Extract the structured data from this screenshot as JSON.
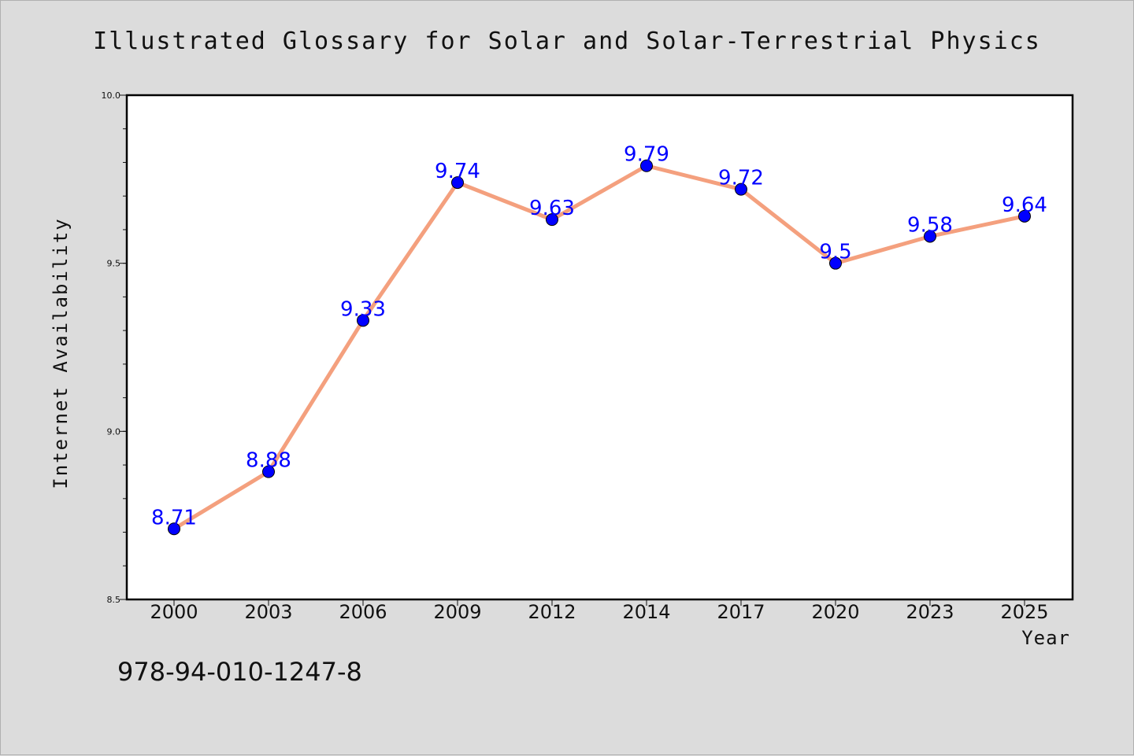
{
  "chart_data": {
    "type": "line",
    "title": "Illustrated Glossary for Solar and Solar-Terrestrial Physics",
    "xlabel": "Year",
    "ylabel": "Internet Availability",
    "categories": [
      "2000",
      "2003",
      "2006",
      "2009",
      "2012",
      "2014",
      "2017",
      "2020",
      "2023",
      "2025"
    ],
    "series": [
      {
        "values": [
          8.71,
          8.88,
          9.33,
          9.74,
          9.63,
          9.79,
          9.72,
          9.5,
          9.58,
          9.64
        ],
        "data_labels": [
          "8.71",
          "8.88",
          "9.33",
          "9.74",
          "9.63",
          "9.79",
          "9.72",
          "9.5",
          "9.58",
          "9.64"
        ]
      }
    ],
    "ylim": [
      8.5,
      10.0
    ],
    "yticks": [
      8.5,
      9.0,
      9.5,
      10.0
    ],
    "ytick_labels": [
      "8.5",
      "9.0",
      "9.5",
      "10.0"
    ],
    "grid": false,
    "legend": "none",
    "colors": {
      "line": "#f4a07e",
      "marker": "#0000ff",
      "data_label": "#0000ff",
      "background": "#dcdcdc",
      "plot_background": "#ffffff"
    }
  },
  "footer": {
    "isbn": "978-94-010-1247-8"
  }
}
